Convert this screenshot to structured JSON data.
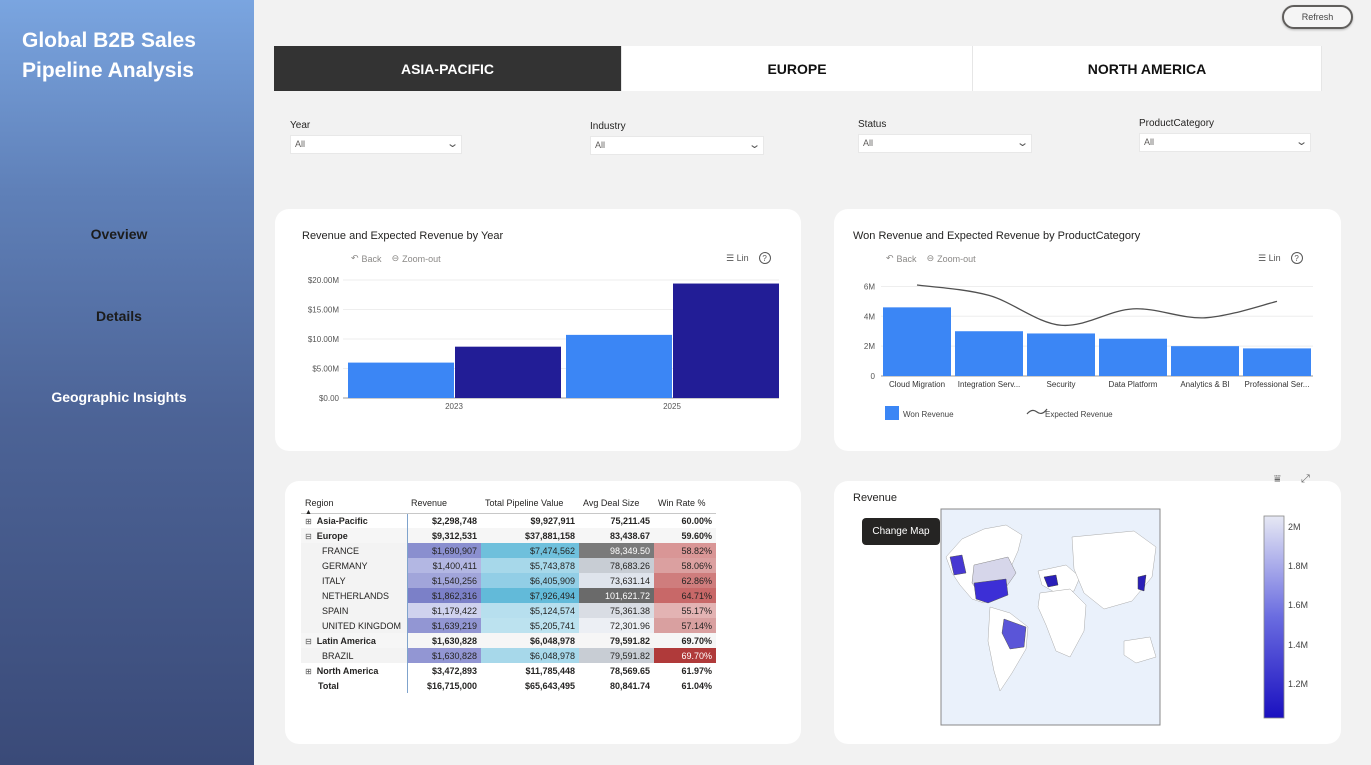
{
  "app": {
    "title_line1": "Global B2B Sales",
    "title_line2": "Pipeline Analysis"
  },
  "nav": {
    "overview": "Oveview",
    "details": "Details",
    "geo": "Geographic Insights"
  },
  "refresh_label": "Refresh",
  "tabs": [
    {
      "label": "ASIA-PACIFIC",
      "active": true
    },
    {
      "label": "EUROPE",
      "active": false
    },
    {
      "label": "NORTH AMERICA",
      "active": false
    }
  ],
  "filters": [
    {
      "label": "Year",
      "value": "All"
    },
    {
      "label": "Industry",
      "value": "All"
    },
    {
      "label": "Status",
      "value": "All"
    },
    {
      "label": "ProductCategory",
      "value": "All"
    }
  ],
  "toolbar": {
    "back": "Back",
    "zoom_out": "Zoom-out",
    "lin": "Lin",
    "help": "?"
  },
  "chart_year": {
    "title": "Revenue and Expected Revenue by Year",
    "colors": {
      "revenue": "#3b86f5",
      "expected": "#221d96"
    }
  },
  "chart_product": {
    "title": "Won Revenue and Expected Revenue by ProductCategory",
    "legend_won": "Won Revenue",
    "legend_expected": "Expected Revenue",
    "colors": {
      "won": "#3b86f5",
      "expected": "#505050"
    }
  },
  "chart_data": [
    {
      "type": "bar",
      "title": "Revenue and Expected Revenue by Year",
      "categories": [
        "2023",
        "2025"
      ],
      "series": [
        {
          "values": [
            6.0,
            10.7
          ]
        },
        {
          "values": [
            8.7,
            19.4
          ]
        }
      ],
      "yticks": [
        "$0.00",
        "$5.00M",
        "$10.00M",
        "$15.00M",
        "$20.00M"
      ],
      "ylim": [
        0,
        20
      ],
      "unit": "$M",
      "grid": true
    },
    {
      "type": "bar",
      "title": "Won Revenue and Expected Revenue by ProductCategory",
      "categories": [
        "Cloud Migration",
        "Integration Serv...",
        "Security",
        "Data Platform",
        "Analytics & BI",
        "Professional Ser..."
      ],
      "series": [
        {
          "name": "Won Revenue",
          "type": "bar",
          "values": [
            4.6,
            3.0,
            2.85,
            2.5,
            2.0,
            1.85
          ]
        },
        {
          "name": "Expected Revenue",
          "type": "line",
          "values": [
            6.1,
            5.4,
            3.4,
            4.5,
            3.9,
            5.0
          ]
        }
      ],
      "yticks": [
        "0",
        "2M",
        "4M",
        "6M"
      ],
      "ylim": [
        0,
        6.5
      ],
      "unit": "M",
      "legend": "bottom-left",
      "grid": true
    }
  ],
  "matrix": {
    "headers": [
      "Region",
      "Revenue",
      "Total Pipeline Value",
      "Avg Deal Size",
      "Win Rate %"
    ],
    "rows": [
      {
        "region": "Asia-Pacific",
        "expand": "⊞",
        "bold": true,
        "revenue": "$2,298,748",
        "pipeline": "$9,927,911",
        "deal": "75,211.45",
        "win": "60.00%"
      },
      {
        "region": "Europe",
        "expand": "⊟",
        "bold": true,
        "revenue": "$9,312,531",
        "pipeline": "$37,881,158",
        "deal": "83,438.67",
        "win": "59.60%"
      },
      {
        "region": "FRANCE",
        "child": true,
        "revenue": "$1,690,907",
        "pipeline": "$7,474,562",
        "deal": "98,349.50",
        "win": "58.82%",
        "c": [
          "#8a8fcf",
          "#6fc0dc",
          "#7a7a7a",
          "#d99696"
        ]
      },
      {
        "region": "GERMANY",
        "child": true,
        "revenue": "$1,400,411",
        "pipeline": "$5,743,878",
        "deal": "78,683.26",
        "win": "58.06%",
        "c": [
          "#b3b7e3",
          "#a7d8ea",
          "#c8cdd4",
          "#dba0a0"
        ]
      },
      {
        "region": "ITALY",
        "child": true,
        "revenue": "$1,540,256",
        "pipeline": "$6,405,909",
        "deal": "73,631.14",
        "win": "62.86%",
        "c": [
          "#a1a5da",
          "#92cee6",
          "#dfe4ec",
          "#cf7d7d"
        ]
      },
      {
        "region": "NETHERLANDS",
        "child": true,
        "revenue": "$1,862,316",
        "pipeline": "$7,926,494",
        "deal": "101,621.72",
        "win": "64.71%",
        "c": [
          "#7b80c8",
          "#62bad9",
          "#6a6a6a",
          "#c86868"
        ]
      },
      {
        "region": "SPAIN",
        "child": true,
        "revenue": "$1,179,422",
        "pipeline": "$5,124,574",
        "deal": "75,361.38",
        "win": "55.17%",
        "c": [
          "#cfd2ee",
          "#b7dfee",
          "#d9dde4",
          "#e3b3b3"
        ]
      },
      {
        "region": "UNITED KINGDOM",
        "child": true,
        "revenue": "$1,639,219",
        "pipeline": "$5,205,741",
        "deal": "72,301.96",
        "win": "57.14%",
        "c": [
          "#9296d3",
          "#bce2ef",
          "#eceff4",
          "#d9a0a0"
        ]
      },
      {
        "region": "Latin America",
        "expand": "⊟",
        "bold": true,
        "revenue": "$1,630,828",
        "pipeline": "$6,048,978",
        "deal": "79,591.82",
        "win": "69.70%"
      },
      {
        "region": "BRAZIL",
        "child": true,
        "revenue": "$1,630,828",
        "pipeline": "$6,048,978",
        "deal": "79,591.82",
        "win": "69.70%",
        "c": [
          "#9296d3",
          "#a7d8ea",
          "#c8cdd4",
          "#b03a3a"
        ]
      },
      {
        "region": "North America",
        "expand": "⊞",
        "bold": true,
        "revenue": "$3,472,893",
        "pipeline": "$11,785,448",
        "deal": "78,569.65",
        "win": "61.97%"
      },
      {
        "region": "Total",
        "bold": true,
        "revenue": "$16,715,000",
        "pipeline": "$65,643,495",
        "deal": "80,841.74",
        "win": "61.04%"
      }
    ]
  },
  "map": {
    "title": "Revenue",
    "change_map_label": "Change Map",
    "legend_ticks": [
      "2M",
      "1.8M",
      "1.6M",
      "1.4M",
      "1.2M"
    ],
    "colors": {
      "high": "#e6e8f4",
      "low": "#1a10c0",
      "ocean": "#eaf1fb",
      "land": "#ffffff"
    }
  }
}
